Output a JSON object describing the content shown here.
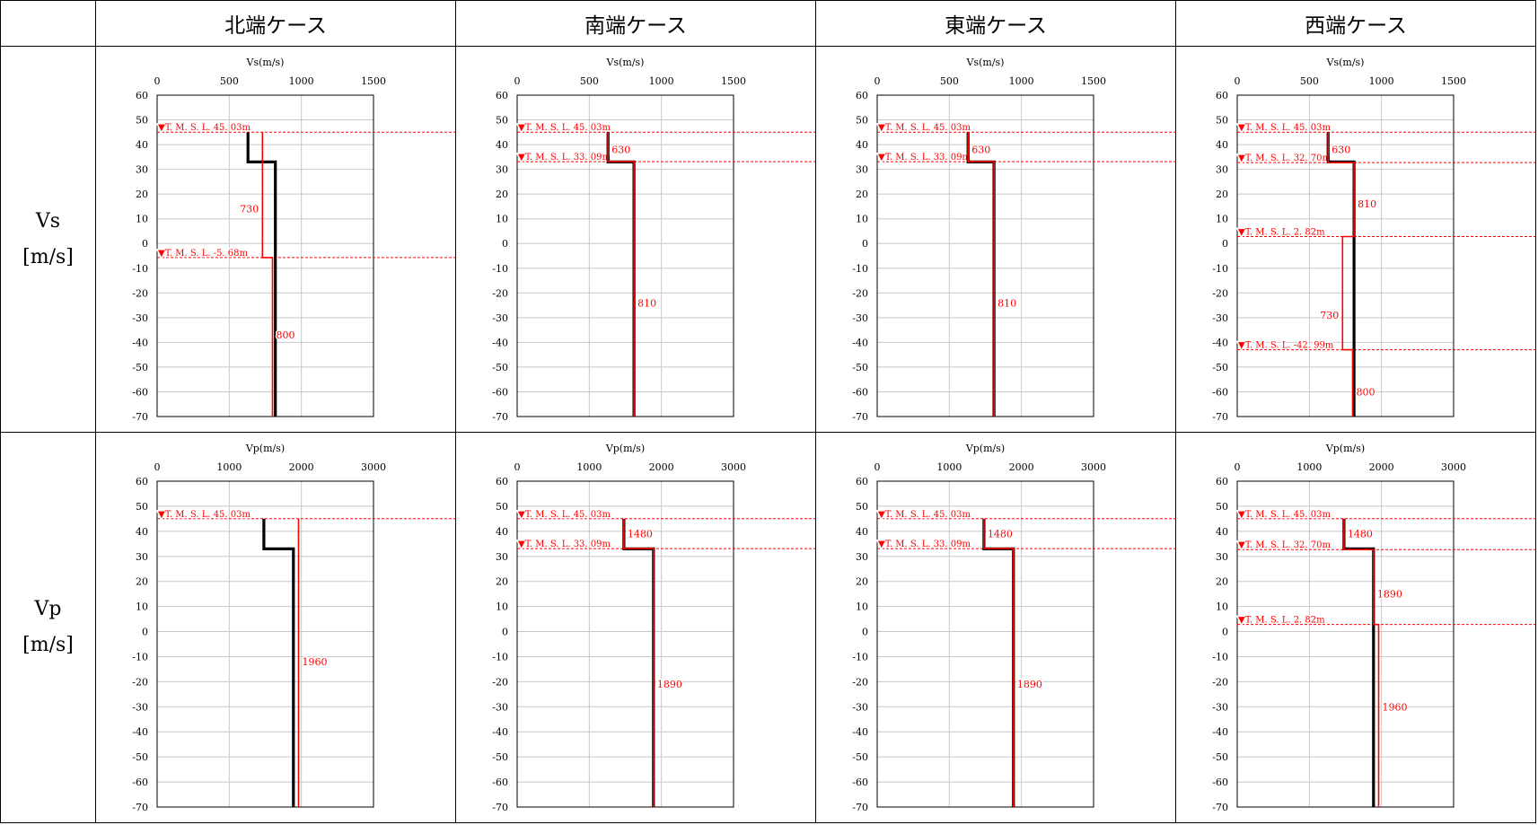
{
  "header": {
    "corner": "",
    "columns": [
      "北端ケース",
      "南端ケース",
      "東端ケース",
      "西端ケース"
    ]
  },
  "rows": [
    {
      "name": "Vs",
      "unit": "[m/s]"
    },
    {
      "name": "Vp",
      "unit": "[m/s]"
    }
  ],
  "colors": {
    "black_profile": "#000000",
    "red_profile": "#ff0000",
    "grid": "#c8c8c8"
  },
  "chart_data": [
    {
      "type": "line",
      "title": "Vs(m/s)",
      "xlabel": "Vs(m/s)",
      "ylabel": "",
      "xlim": [
        0,
        1500
      ],
      "ylim": [
        -70,
        60
      ],
      "xticks": [
        "0",
        "500",
        "1000",
        "1500"
      ],
      "yticks": [
        "60",
        "50",
        "40",
        "30",
        "20",
        "10",
        "0",
        "-10",
        "-20",
        "-30",
        "-40",
        "-50",
        "-60",
        "-70"
      ],
      "black_profile": [
        [
          630,
          45
        ],
        [
          630,
          33
        ],
        [
          820,
          33
        ],
        [
          820,
          -70
        ]
      ],
      "red_profile": [
        [
          730,
          45
        ],
        [
          730,
          -5.68
        ],
        [
          800,
          -5.68
        ],
        [
          800,
          -70
        ]
      ],
      "levels": [
        {
          "y": 45.03,
          "label": "▼T. M. S. L. 45. 03m"
        },
        {
          "y": -5.68,
          "label": "▼T. M. S. L. -5. 68m"
        }
      ],
      "value_labels": [
        {
          "x": 730,
          "y": 14,
          "text": "730",
          "anchor": "end"
        },
        {
          "x": 800,
          "y": -37,
          "text": "800",
          "anchor": "start"
        }
      ]
    },
    {
      "type": "line",
      "title": "Vs(m/s)",
      "xlabel": "Vs(m/s)",
      "ylabel": "",
      "xlim": [
        0,
        1500
      ],
      "ylim": [
        -70,
        60
      ],
      "xticks": [
        "0",
        "500",
        "1000",
        "1500"
      ],
      "yticks": [
        "60",
        "50",
        "40",
        "30",
        "20",
        "10",
        "0",
        "-10",
        "-20",
        "-30",
        "-40",
        "-50",
        "-60",
        "-70"
      ],
      "black_profile": [
        [
          630,
          45
        ],
        [
          630,
          33
        ],
        [
          810,
          33
        ],
        [
          810,
          -70
        ]
      ],
      "red_profile": [
        [
          630,
          45
        ],
        [
          630,
          33.09
        ],
        [
          810,
          33.09
        ],
        [
          810,
          -70
        ]
      ],
      "levels": [
        {
          "y": 45.03,
          "label": "▼T. M. S. L. 45. 03m"
        },
        {
          "y": 33.09,
          "label": "▼T. M. S. L. 33. 09m"
        }
      ],
      "value_labels": [
        {
          "x": 630,
          "y": 38,
          "text": "630",
          "anchor": "start"
        },
        {
          "x": 810,
          "y": -24,
          "text": "810",
          "anchor": "start"
        }
      ]
    },
    {
      "type": "line",
      "title": "Vs(m/s)",
      "xlabel": "Vs(m/s)",
      "ylabel": "",
      "xlim": [
        0,
        1500
      ],
      "ylim": [
        -70,
        60
      ],
      "xticks": [
        "0",
        "500",
        "1000",
        "1500"
      ],
      "yticks": [
        "60",
        "50",
        "40",
        "30",
        "20",
        "10",
        "0",
        "-10",
        "-20",
        "-30",
        "-40",
        "-50",
        "-60",
        "-70"
      ],
      "black_profile": [
        [
          630,
          45
        ],
        [
          630,
          33
        ],
        [
          810,
          33
        ],
        [
          810,
          -70
        ]
      ],
      "red_profile": [
        [
          630,
          45
        ],
        [
          630,
          33.09
        ],
        [
          810,
          33.09
        ],
        [
          810,
          -70
        ]
      ],
      "levels": [
        {
          "y": 45.03,
          "label": "▼T. M. S. L. 45. 03m"
        },
        {
          "y": 33.09,
          "label": "▼T. M. S. L. 33. 09m"
        }
      ],
      "value_labels": [
        {
          "x": 630,
          "y": 38,
          "text": "630",
          "anchor": "start"
        },
        {
          "x": 810,
          "y": -24,
          "text": "810",
          "anchor": "start"
        }
      ]
    },
    {
      "type": "line",
      "title": "Vs(m/s)",
      "xlabel": "Vs(m/s)",
      "ylabel": "",
      "xlim": [
        0,
        1500
      ],
      "ylim": [
        -70,
        60
      ],
      "xticks": [
        "0",
        "500",
        "1000",
        "1500"
      ],
      "yticks": [
        "60",
        "50",
        "40",
        "30",
        "20",
        "10",
        "0",
        "-10",
        "-20",
        "-30",
        "-40",
        "-50",
        "-60",
        "-70"
      ],
      "black_profile": [
        [
          630,
          45
        ],
        [
          630,
          33
        ],
        [
          810,
          33
        ],
        [
          810,
          -70
        ]
      ],
      "red_profile": [
        [
          630,
          45
        ],
        [
          630,
          32.7
        ],
        [
          810,
          32.7
        ],
        [
          810,
          2.82
        ],
        [
          730,
          2.82
        ],
        [
          730,
          -42.99
        ],
        [
          800,
          -42.99
        ],
        [
          800,
          -70
        ]
      ],
      "levels": [
        {
          "y": 45.03,
          "label": "▼T. M. S. L. 45. 03m"
        },
        {
          "y": 32.7,
          "label": "▼T. M. S. L. 32. 70m"
        },
        {
          "y": 2.82,
          "label": "▼T. M. S. L. 2. 82m"
        },
        {
          "y": -42.99,
          "label": "▼T. M. S. L. -42. 99m"
        }
      ],
      "value_labels": [
        {
          "x": 630,
          "y": 38,
          "text": "630",
          "anchor": "start"
        },
        {
          "x": 810,
          "y": 16,
          "text": "810",
          "anchor": "start"
        },
        {
          "x": 730,
          "y": -29,
          "text": "730",
          "anchor": "end"
        },
        {
          "x": 800,
          "y": -60,
          "text": "800",
          "anchor": "start"
        }
      ]
    },
    {
      "type": "line",
      "title": "Vp(m/s)",
      "xlabel": "Vp(m/s)",
      "ylabel": "",
      "xlim": [
        0,
        3000
      ],
      "ylim": [
        -70,
        60
      ],
      "xticks": [
        "0",
        "1000",
        "2000",
        "3000"
      ],
      "yticks": [
        "60",
        "50",
        "40",
        "30",
        "20",
        "10",
        "0",
        "-10",
        "-20",
        "-30",
        "-40",
        "-50",
        "-60",
        "-70"
      ],
      "black_profile": [
        [
          1480,
          45
        ],
        [
          1480,
          33
        ],
        [
          1890,
          33
        ],
        [
          1890,
          -70
        ]
      ],
      "red_profile": [
        [
          1960,
          45
        ],
        [
          1960,
          -70
        ]
      ],
      "levels": [
        {
          "y": 45.03,
          "label": "▼T. M. S. L. 45. 03m"
        }
      ],
      "value_labels": [
        {
          "x": 1960,
          "y": -12,
          "text": "1960",
          "anchor": "start"
        }
      ]
    },
    {
      "type": "line",
      "title": "Vp(m/s)",
      "xlabel": "Vp(m/s)",
      "ylabel": "",
      "xlim": [
        0,
        3000
      ],
      "ylim": [
        -70,
        60
      ],
      "xticks": [
        "0",
        "1000",
        "2000",
        "3000"
      ],
      "yticks": [
        "60",
        "50",
        "40",
        "30",
        "20",
        "10",
        "0",
        "-10",
        "-20",
        "-30",
        "-40",
        "-50",
        "-60",
        "-70"
      ],
      "black_profile": [
        [
          1480,
          45
        ],
        [
          1480,
          33
        ],
        [
          1890,
          33
        ],
        [
          1890,
          -70
        ]
      ],
      "red_profile": [
        [
          1480,
          45
        ],
        [
          1480,
          33.09
        ],
        [
          1890,
          33.09
        ],
        [
          1890,
          -70
        ]
      ],
      "levels": [
        {
          "y": 45.03,
          "label": "▼T. M. S. L. 45. 03m"
        },
        {
          "y": 33.09,
          "label": "▼T. M. S. L. 33. 09m"
        }
      ],
      "value_labels": [
        {
          "x": 1480,
          "y": 39,
          "text": "1480",
          "anchor": "start"
        },
        {
          "x": 1890,
          "y": -21,
          "text": "1890",
          "anchor": "start"
        }
      ]
    },
    {
      "type": "line",
      "title": "Vp(m/s)",
      "xlabel": "Vp(m/s)",
      "ylabel": "",
      "xlim": [
        0,
        3000
      ],
      "ylim": [
        -70,
        60
      ],
      "xticks": [
        "0",
        "1000",
        "2000",
        "3000"
      ],
      "yticks": [
        "60",
        "50",
        "40",
        "30",
        "20",
        "10",
        "0",
        "-10",
        "-20",
        "-30",
        "-40",
        "-50",
        "-60",
        "-70"
      ],
      "black_profile": [
        [
          1480,
          45
        ],
        [
          1480,
          33
        ],
        [
          1890,
          33
        ],
        [
          1890,
          -70
        ]
      ],
      "red_profile": [
        [
          1480,
          45
        ],
        [
          1480,
          33.09
        ],
        [
          1890,
          33.09
        ],
        [
          1890,
          -70
        ]
      ],
      "levels": [
        {
          "y": 45.03,
          "label": "▼T. M. S. L. 45. 03m"
        },
        {
          "y": 33.09,
          "label": "▼T. M. S. L. 33. 09m"
        }
      ],
      "value_labels": [
        {
          "x": 1480,
          "y": 39,
          "text": "1480",
          "anchor": "start"
        },
        {
          "x": 1890,
          "y": -21,
          "text": "1890",
          "anchor": "start"
        }
      ]
    },
    {
      "type": "line",
      "title": "Vp(m/s)",
      "xlabel": "Vp(m/s)",
      "ylabel": "",
      "xlim": [
        0,
        3000
      ],
      "ylim": [
        -70,
        60
      ],
      "xticks": [
        "0",
        "1000",
        "2000",
        "3000"
      ],
      "yticks": [
        "60",
        "50",
        "40",
        "30",
        "20",
        "10",
        "0",
        "-10",
        "-20",
        "-30",
        "-40",
        "-50",
        "-60",
        "-70"
      ],
      "black_profile": [
        [
          1480,
          45
        ],
        [
          1480,
          33
        ],
        [
          1890,
          33
        ],
        [
          1890,
          -70
        ]
      ],
      "red_profile": [
        [
          1480,
          45
        ],
        [
          1480,
          32.7
        ],
        [
          1890,
          32.7
        ],
        [
          1890,
          2.82
        ],
        [
          1960,
          2.82
        ],
        [
          1960,
          -70
        ]
      ],
      "levels": [
        {
          "y": 45.03,
          "label": "▼T. M. S. L. 45. 03m"
        },
        {
          "y": 32.7,
          "label": "▼T. M. S. L. 32. 70m"
        },
        {
          "y": 2.82,
          "label": "▼T. M. S. L. 2. 82m"
        }
      ],
      "value_labels": [
        {
          "x": 1480,
          "y": 39,
          "text": "1480",
          "anchor": "start"
        },
        {
          "x": 1890,
          "y": 15,
          "text": "1890",
          "anchor": "start"
        },
        {
          "x": 1960,
          "y": -30,
          "text": "1960",
          "anchor": "start"
        }
      ]
    }
  ]
}
